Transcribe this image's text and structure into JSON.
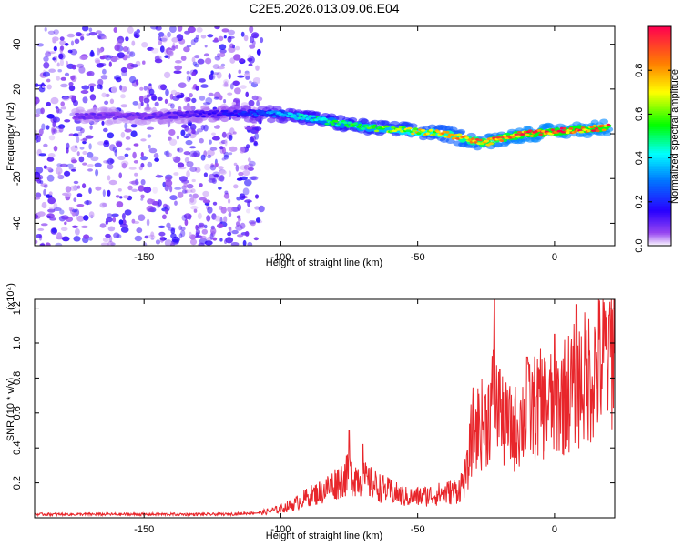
{
  "title": "C2E5.2026.013.09.06.E04",
  "colors": {
    "snr_line": "#e8262b",
    "frame": "#000000"
  },
  "chart_data": [
    {
      "type": "heatmap",
      "xlabel": "Height of straight line (km)",
      "ylabel": "Frequency (Hz)",
      "xlim": [
        -190,
        22
      ],
      "ylim": [
        -50,
        48
      ],
      "x_ticks": [
        -150,
        -100,
        -50,
        0
      ],
      "x_tick_labels": [
        "-150",
        "-100",
        "-50",
        "0"
      ],
      "y_ticks": [
        -40,
        -20,
        0,
        20,
        40
      ],
      "y_tick_labels": [
        "-40",
        "-20",
        "0",
        "20",
        "40"
      ],
      "colorbar": {
        "label": "Normalized spectral amplitude",
        "range": [
          0,
          1
        ],
        "ticks": [
          0.0,
          0.2,
          0.4,
          0.6,
          0.8
        ],
        "tick_labels": [
          "0.0",
          "0.2",
          "0.4",
          "0.6",
          "0.8"
        ],
        "colormap": "rainbow"
      },
      "ridge": {
        "x": [
          -175,
          -150,
          -125,
          -110,
          -100,
          -90,
          -80,
          -70,
          -60,
          -50,
          -40,
          -30,
          -25,
          -20,
          -10,
          0,
          10,
          20
        ],
        "frequency": [
          8,
          8,
          9,
          9,
          9,
          7,
          5,
          3,
          2,
          1,
          0,
          -3,
          -4,
          -2,
          0,
          1,
          2,
          3
        ],
        "amplitude": [
          0.1,
          0.1,
          0.15,
          0.25,
          0.35,
          0.45,
          0.5,
          0.55,
          0.6,
          0.7,
          0.75,
          0.8,
          0.85,
          0.85,
          0.9,
          0.9,
          0.9,
          0.9
        ]
      },
      "noise_region": {
        "x_range": [
          -190,
          -107
        ],
        "frequency_range": [
          -50,
          48
        ],
        "amplitude": 0.05
      }
    },
    {
      "type": "line",
      "xlabel": "Height of straight line (km)",
      "ylabel": "SNR (10 * v/v)",
      "y_multiplier": "(x10⁴)",
      "xlim": [
        -190,
        22
      ],
      "ylim": [
        0,
        1.25
      ],
      "x_ticks": [
        -150,
        -100,
        -50,
        0
      ],
      "x_tick_labels": [
        "-150",
        "-100",
        "-50",
        "0"
      ],
      "y_ticks": [
        0.2,
        0.4,
        0.6,
        0.8,
        1.0,
        1.2
      ],
      "y_tick_labels": [
        "0.2",
        "0.4",
        "0.6",
        "0.8",
        "1.0",
        "1.2"
      ],
      "series": [
        {
          "x": [
            -190,
            -120,
            -107,
            -100,
            -95,
            -90,
            -85,
            -80,
            -75,
            -70,
            -65,
            -60,
            -55,
            -50,
            -45,
            -40,
            -35,
            -32,
            -30,
            -25,
            -22,
            -20,
            -15,
            -10,
            -5,
            0,
            5,
            10,
            15,
            20,
            22
          ],
          "y": [
            0.02,
            0.02,
            0.03,
            0.05,
            0.08,
            0.12,
            0.15,
            0.2,
            0.25,
            0.22,
            0.18,
            0.15,
            0.12,
            0.12,
            0.13,
            0.14,
            0.16,
            0.25,
            0.5,
            0.55,
            0.7,
            0.55,
            0.5,
            0.6,
            0.65,
            0.65,
            0.72,
            0.78,
            0.85,
            0.95,
            1.0
          ],
          "peaks": [
            [
              -75,
              0.5
            ],
            [
              -70,
              0.42
            ],
            [
              -22,
              1.25
            ],
            [
              -20,
              0.85
            ],
            [
              -10,
              0.92
            ],
            [
              0,
              1.05
            ],
            [
              8,
              1.22
            ],
            [
              20,
              1.16
            ]
          ]
        }
      ]
    }
  ]
}
